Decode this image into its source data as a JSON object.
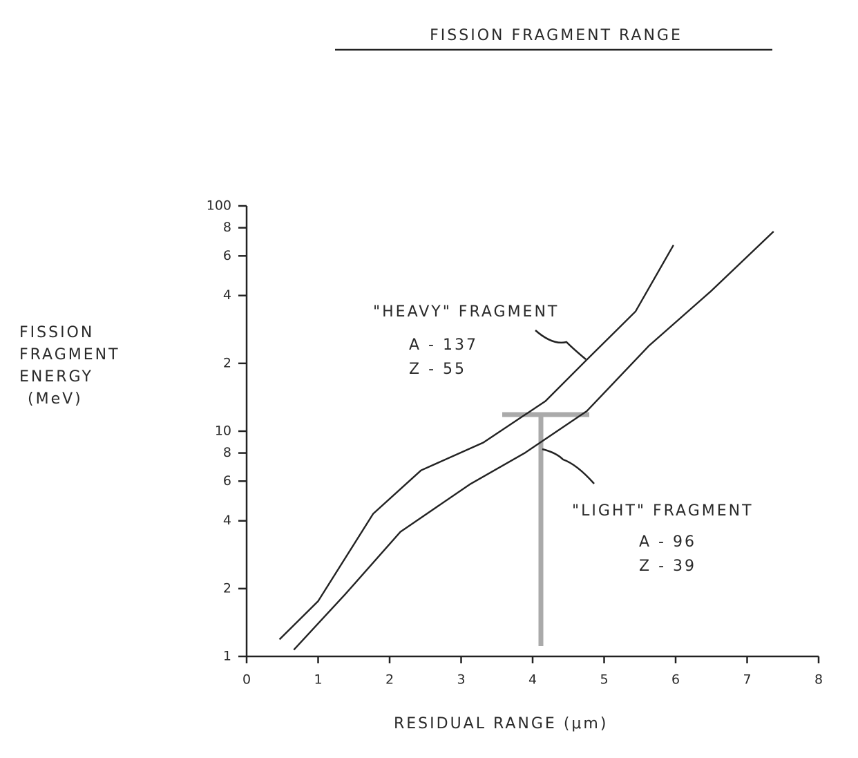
{
  "chart_data": {
    "type": "line",
    "title": "FISSION FRAGMENT RANGE",
    "xlabel": "RESIDUAL RANGE (μm)",
    "ylabel": [
      "FISSION",
      "FRAGMENT",
      "ENERGY",
      "(MeV)"
    ],
    "xlim": [
      0,
      8
    ],
    "xticks": [
      0,
      1,
      2,
      3,
      4,
      5,
      6,
      7,
      8
    ],
    "ylim": [
      1,
      100
    ],
    "yscale": "log",
    "yticks": [
      1,
      {
        "value": 2,
        "label": "2"
      },
      {
        "value": 4,
        "label": "4"
      },
      {
        "value": 6,
        "label": "6"
      },
      {
        "value": 8,
        "label": "8"
      },
      10,
      {
        "value": 20,
        "label": "2"
      },
      {
        "value": 40,
        "label": "4"
      },
      {
        "value": 60,
        "label": "6"
      },
      {
        "value": 80,
        "label": "8"
      },
      100
    ],
    "grid": false,
    "series": [
      {
        "name": "\"HEAVY\" FRAGMENT",
        "color": "#222222",
        "x": [
          0.46,
          1.0,
          1.77,
          2.44,
          3.31,
          4.18,
          4.76,
          5.44,
          5.97
        ],
        "values": [
          1.19,
          1.76,
          4.3,
          6.7,
          8.9,
          13.6,
          20.8,
          34,
          67
        ]
      },
      {
        "name": "\"LIGHT\" FRAGMENT",
        "color": "#222222",
        "x": [
          0.66,
          1.38,
          2.15,
          3.12,
          3.89,
          4.76,
          5.63,
          6.5,
          7.37
        ],
        "values": [
          1.07,
          1.89,
          3.57,
          5.8,
          8.0,
          12.3,
          24,
          42,
          77
        ]
      }
    ],
    "annotations": [
      "A - 137",
      "Z - 55",
      "A - 96",
      "Z - 39"
    ]
  }
}
